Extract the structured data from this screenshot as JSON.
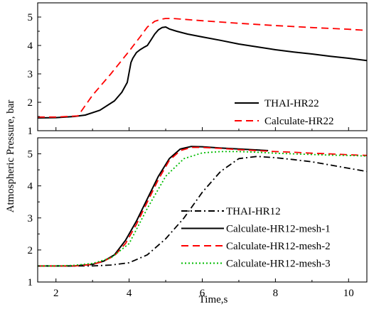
{
  "chart_data": [
    {
      "type": "line",
      "panel": "top",
      "title": "",
      "xlabel": "",
      "ylabel": "",
      "xlim": [
        1.5,
        10.5
      ],
      "ylim": [
        1,
        5.5
      ],
      "y_ticks": [
        1,
        2,
        3,
        4,
        5
      ],
      "grid": false,
      "legend_position": "bottom-right",
      "series": [
        {
          "name": "THAI-HR22",
          "color": "#000000",
          "dash": "solid",
          "x": [
            1.5,
            2.0,
            2.5,
            2.8,
            3.2,
            3.6,
            3.8,
            3.95,
            4.0,
            4.05,
            4.1,
            4.2,
            4.3,
            4.4,
            4.5,
            4.6,
            4.7,
            4.8,
            4.9,
            5.0,
            5.1,
            5.3,
            5.6,
            6.0,
            6.5,
            7.0,
            7.5,
            8.0,
            8.5,
            9.0,
            9.5,
            10.0,
            10.5
          ],
          "y": [
            1.45,
            1.46,
            1.5,
            1.55,
            1.72,
            2.05,
            2.35,
            2.7,
            3.05,
            3.4,
            3.55,
            3.75,
            3.85,
            3.93,
            4.0,
            4.2,
            4.4,
            4.55,
            4.63,
            4.65,
            4.58,
            4.5,
            4.4,
            4.3,
            4.18,
            4.05,
            3.95,
            3.85,
            3.77,
            3.7,
            3.62,
            3.55,
            3.47
          ]
        },
        {
          "name": "Calculate-HR22",
          "color": "#ff0000",
          "dash": "dashed",
          "x": [
            1.5,
            2.0,
            2.6,
            2.7,
            3.0,
            3.5,
            4.0,
            4.3,
            4.5,
            4.7,
            4.9,
            5.0,
            5.2,
            5.5,
            6.0,
            7.0,
            8.0,
            9.0,
            10.0,
            10.5
          ],
          "y": [
            1.48,
            1.48,
            1.52,
            1.7,
            2.25,
            3.0,
            3.8,
            4.3,
            4.65,
            4.85,
            4.93,
            4.95,
            4.95,
            4.92,
            4.87,
            4.78,
            4.7,
            4.63,
            4.57,
            4.53
          ]
        }
      ]
    },
    {
      "type": "line",
      "panel": "bottom",
      "title": "",
      "xlabel": "Time,s",
      "ylabel": "Atmospheric Pressure, bar",
      "xlim": [
        1.5,
        10.5
      ],
      "ylim": [
        1,
        5.5
      ],
      "x_ticks": [
        2,
        4,
        6,
        8,
        10
      ],
      "y_ticks": [
        1,
        2,
        3,
        4,
        5
      ],
      "grid": false,
      "legend_position": "bottom-right",
      "series": [
        {
          "name": "THAI-HR12",
          "color": "#000000",
          "dash": "dashdot",
          "x": [
            1.5,
            2.0,
            3.0,
            3.5,
            4.0,
            4.5,
            5.0,
            5.5,
            6.0,
            6.5,
            7.0,
            7.5,
            8.0,
            8.5,
            9.0,
            9.5,
            10.0,
            10.5
          ],
          "y": [
            1.5,
            1.5,
            1.5,
            1.53,
            1.6,
            1.85,
            2.35,
            3.0,
            3.8,
            4.45,
            4.85,
            4.92,
            4.88,
            4.82,
            4.75,
            4.65,
            4.55,
            4.45
          ]
        },
        {
          "name": "Calculate-HR12-mesh-1",
          "color": "#000000",
          "dash": "solid",
          "x": [
            1.5,
            2.0,
            2.5,
            3.0,
            3.3,
            3.6,
            3.9,
            4.2,
            4.5,
            4.8,
            5.1,
            5.4,
            5.7,
            6.0,
            6.5,
            7.0,
            7.5,
            7.8
          ],
          "y": [
            1.5,
            1.5,
            1.5,
            1.55,
            1.65,
            1.85,
            2.3,
            2.9,
            3.6,
            4.3,
            4.85,
            5.15,
            5.23,
            5.22,
            5.18,
            5.15,
            5.12,
            5.1
          ]
        },
        {
          "name": "Calculate-HR12-mesh-2",
          "color": "#ff0000",
          "dash": "dashed",
          "x": [
            1.5,
            2.0,
            2.5,
            3.0,
            3.3,
            3.6,
            3.9,
            4.2,
            4.5,
            4.8,
            5.1,
            5.4,
            5.7,
            6.0,
            6.5,
            7.0,
            7.5,
            8.0,
            8.5,
            9.0,
            9.5,
            10.0,
            10.5
          ],
          "y": [
            1.5,
            1.5,
            1.5,
            1.55,
            1.65,
            1.82,
            2.2,
            2.8,
            3.5,
            4.2,
            4.8,
            5.1,
            5.2,
            5.2,
            5.17,
            5.13,
            5.1,
            5.07,
            5.05,
            5.02,
            5.0,
            4.97,
            4.95
          ]
        },
        {
          "name": "Calculate-HR12-mesh-3",
          "color": "#00bb00",
          "dash": "dotted",
          "x": [
            1.5,
            2.0,
            2.5,
            3.0,
            3.5,
            4.0,
            4.5,
            5.0,
            5.5,
            6.0,
            6.5,
            7.0,
            7.5,
            8.0,
            8.5,
            9.0,
            9.5,
            10.0,
            10.5
          ],
          "y": [
            1.5,
            1.5,
            1.52,
            1.58,
            1.75,
            2.2,
            3.3,
            4.3,
            4.85,
            5.03,
            5.07,
            5.07,
            5.05,
            5.02,
            5.0,
            4.98,
            4.96,
            4.95,
            4.93
          ]
        }
      ]
    }
  ]
}
